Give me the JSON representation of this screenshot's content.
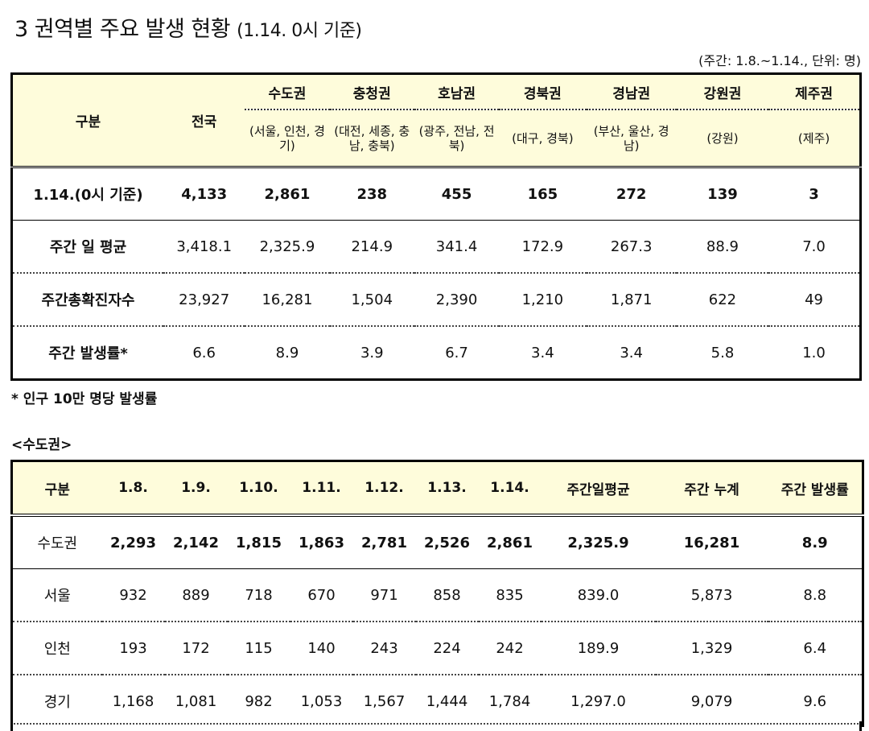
{
  "title": {
    "main": "3  권역별 주요 발생 현황",
    "paren": "(1.14. 0시 기준)"
  },
  "unit_note": "(주간: 1.8.~1.14., 단위: 명)",
  "table1": {
    "header_label": "구분",
    "header_national": "전국",
    "regions": [
      {
        "name": "수도권",
        "sub": "(서울, 인천, 경기)"
      },
      {
        "name": "충청권",
        "sub": "(대전, 세종, 충남, 충북)"
      },
      {
        "name": "호남권",
        "sub": "(광주, 전남, 전북)"
      },
      {
        "name": "경북권",
        "sub": "(대구, 경북)"
      },
      {
        "name": "경남권",
        "sub": "(부산, 울산, 경남)"
      },
      {
        "name": "강원권",
        "sub": "(강원)"
      },
      {
        "name": "제주권",
        "sub": "(제주)"
      }
    ],
    "rows": [
      {
        "label": "1.14.(0시 기준)",
        "values": [
          "4,133",
          "2,861",
          "238",
          "455",
          "165",
          "272",
          "139",
          "3"
        ]
      },
      {
        "label": "주간 일 평균",
        "values": [
          "3,418.1",
          "2,325.9",
          "214.9",
          "341.4",
          "172.9",
          "267.3",
          "88.9",
          "7.0"
        ]
      },
      {
        "label": "주간총확진자수",
        "values": [
          "23,927",
          "16,281",
          "1,504",
          "2,390",
          "1,210",
          "1,871",
          "622",
          "49"
        ]
      },
      {
        "label": "주간 발생률*",
        "values": [
          "6.6",
          "8.9",
          "3.9",
          "6.7",
          "3.4",
          "3.4",
          "5.8",
          "1.0"
        ]
      }
    ]
  },
  "footnote": "* 인구 10만 명당 발생률",
  "subheading": "<수도권>",
  "table2": {
    "headers": [
      "구분",
      "1.8.",
      "1.9.",
      "1.10.",
      "1.11.",
      "1.12.",
      "1.13.",
      "1.14.",
      "주간일평균",
      "주간 누계",
      "주간 발생률"
    ],
    "rows": [
      {
        "label": "수도권",
        "values": [
          "2,293",
          "2,142",
          "1,815",
          "1,863",
          "2,781",
          "2,526",
          "2,861",
          "2,325.9",
          "16,281",
          "8.9"
        ]
      },
      {
        "label": "서울",
        "values": [
          "932",
          "889",
          "718",
          "670",
          "971",
          "858",
          "835",
          "839.0",
          "5,873",
          "8.8"
        ]
      },
      {
        "label": "인천",
        "values": [
          "193",
          "172",
          "115",
          "140",
          "243",
          "224",
          "242",
          "189.9",
          "1,329",
          "6.4"
        ]
      },
      {
        "label": "경기",
        "values": [
          "1,168",
          "1,081",
          "982",
          "1,053",
          "1,567",
          "1,444",
          "1,784",
          "1,297.0",
          "9,079",
          "9.6"
        ]
      }
    ]
  }
}
